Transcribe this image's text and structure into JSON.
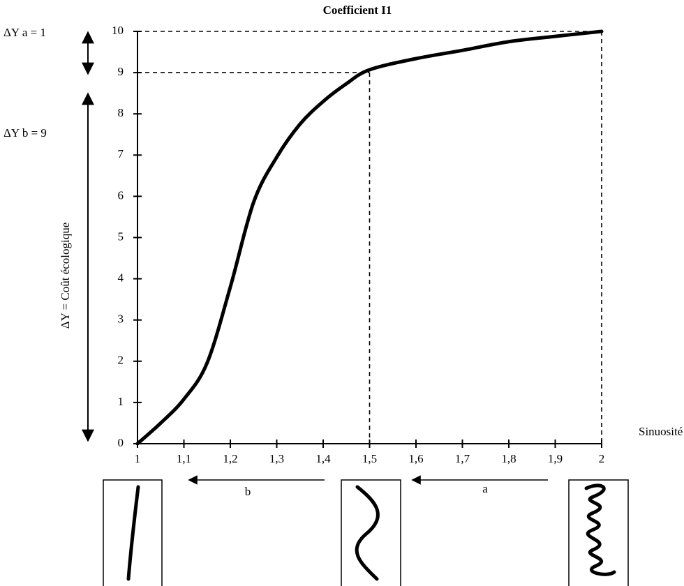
{
  "chart_data": {
    "type": "line",
    "title": "Coefficient I1",
    "xlabel": "Sinuosité",
    "ylabel": "ΔY = Coût écologique",
    "x": [
      1,
      1.05,
      1.1,
      1.15,
      1.2,
      1.25,
      1.3,
      1.35,
      1.4,
      1.45,
      1.5,
      1.6,
      1.7,
      1.8,
      1.9,
      2
    ],
    "values": [
      0,
      0.5,
      1.08,
      1.96,
      3.8,
      5.85,
      6.95,
      7.75,
      8.3,
      8.73,
      9.07,
      9.34,
      9.54,
      9.75,
      9.88,
      10
    ],
    "color": "#000000",
    "xlim": [
      1,
      2
    ],
    "ylim": [
      0,
      10
    ],
    "xticks": [
      1,
      {
        "value": 1.1,
        "label": "1,1"
      },
      {
        "value": 1.2,
        "label": "1,2"
      },
      {
        "value": 1.3,
        "label": "1,3"
      },
      {
        "value": 1.4,
        "label": "1,4"
      },
      {
        "value": 1.5,
        "label": "1,5"
      },
      {
        "value": 1.6,
        "label": "1,6"
      },
      {
        "value": 1.7,
        "label": "1,7"
      },
      {
        "value": 1.8,
        "label": "1,8"
      },
      {
        "value": 1.9,
        "label": "1,9"
      },
      2
    ],
    "yticks": [
      0,
      1,
      2,
      3,
      4,
      5,
      6,
      7,
      8,
      9,
      10
    ],
    "guides": [
      {
        "x": 1.5,
        "y": 9
      },
      {
        "x": 2,
        "y": 10
      }
    ],
    "annotations": [
      "ΔY a = 1",
      "ΔY b = 9",
      "b",
      "a"
    ]
  }
}
